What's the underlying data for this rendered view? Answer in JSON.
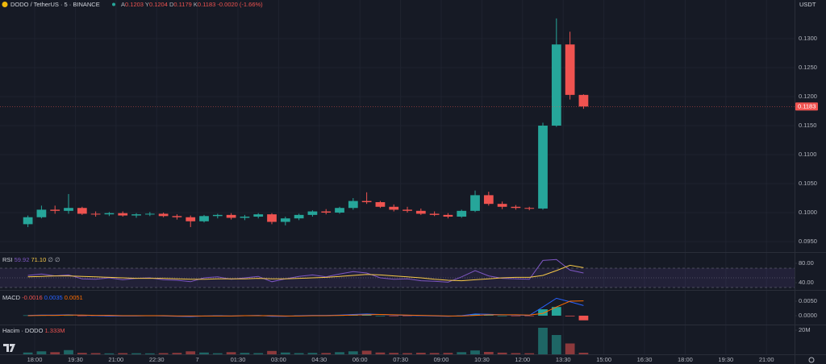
{
  "chart_data": {
    "type": "candlestick",
    "title": "DODO / TetherUS · 5 · BINANCE",
    "quote": "USDT",
    "ohlc_legend": [
      {
        "label": "A",
        "value": "0.1203"
      },
      {
        "label": "Y",
        "value": "0.1204"
      },
      {
        "label": "D",
        "value": "0.1179"
      },
      {
        "label": "K",
        "value": "0.1183"
      }
    ],
    "change": "-0.0020 (-1.66%)",
    "up_color": "#26a69a",
    "down_color": "#ef5350",
    "grid": true,
    "x": [
      1065,
      1095,
      1125,
      1155,
      1185,
      1215,
      1245,
      1275,
      1305,
      1335,
      1365,
      1395,
      1425,
      1455,
      1485,
      1515,
      1545,
      1575,
      1605,
      1635,
      1665,
      1695,
      1725,
      1755,
      1785,
      1815,
      1845,
      1875,
      1905,
      1935,
      1965,
      1995,
      2025,
      2055,
      2085,
      2115,
      2145,
      2175,
      2205,
      2235,
      2265,
      2295
    ],
    "open": [
      0.098,
      0.0992,
      0.1005,
      0.1003,
      0.1008,
      0.0998,
      0.0997,
      0.0999,
      0.0995,
      0.0997,
      0.0998,
      0.0994,
      0.0992,
      0.0985,
      0.0994,
      0.0996,
      0.0991,
      0.0993,
      0.0997,
      0.0984,
      0.099,
      0.0996,
      0.1002,
      0.1,
      0.1008,
      0.102,
      0.1018,
      0.101,
      0.1005,
      0.1003,
      0.0998,
      0.0996,
      0.0993,
      0.1003,
      0.103,
      0.1015,
      0.101,
      0.1008,
      0.1007,
      0.115,
      0.129,
      0.1203
    ],
    "high": [
      0.0995,
      0.1012,
      0.1012,
      0.1032,
      0.101,
      0.1002,
      0.1001,
      0.1002,
      0.0999,
      0.1001,
      0.1,
      0.0997,
      0.0995,
      0.0996,
      0.0998,
      0.0999,
      0.0996,
      0.0999,
      0.0999,
      0.0993,
      0.0998,
      0.1004,
      0.1006,
      0.101,
      0.1025,
      0.1035,
      0.102,
      0.1014,
      0.101,
      0.1007,
      0.1002,
      0.0999,
      0.1005,
      0.1038,
      0.1036,
      0.1019,
      0.1013,
      0.101,
      0.1155,
      0.1335,
      0.1312,
      0.1204
    ],
    "low": [
      0.0975,
      0.099,
      0.0998,
      0.0998,
      0.0996,
      0.0993,
      0.0994,
      0.0993,
      0.0991,
      0.0994,
      0.0992,
      0.0988,
      0.0975,
      0.0983,
      0.099,
      0.0988,
      0.0987,
      0.099,
      0.098,
      0.0978,
      0.0987,
      0.0993,
      0.0997,
      0.0998,
      0.1005,
      0.1015,
      0.1008,
      0.1002,
      0.1,
      0.0996,
      0.0994,
      0.099,
      0.0991,
      0.1001,
      0.1012,
      0.1006,
      0.1005,
      0.1004,
      0.1005,
      0.1148,
      0.1195,
      0.1179
    ],
    "close": [
      0.0992,
      0.1005,
      0.1003,
      0.1008,
      0.0998,
      0.0997,
      0.0999,
      0.0995,
      0.0997,
      0.0998,
      0.0994,
      0.0992,
      0.0985,
      0.0994,
      0.0996,
      0.0991,
      0.0993,
      0.0997,
      0.0984,
      0.099,
      0.0996,
      0.1002,
      0.1,
      0.1008,
      0.102,
      0.1018,
      0.101,
      0.1005,
      0.1003,
      0.0998,
      0.0996,
      0.0993,
      0.1003,
      0.103,
      0.1015,
      0.101,
      0.1008,
      0.1007,
      0.115,
      0.129,
      0.1203,
      0.1183
    ],
    "xlim": [
      1003.2,
      2762.1
    ],
    "xticks": [
      {
        "value": 1080,
        "label": "18:00"
      },
      {
        "value": 1170,
        "label": "19:30"
      },
      {
        "value": 1260,
        "label": "21:00"
      },
      {
        "value": 1350,
        "label": "22:30"
      },
      {
        "value": 1440,
        "label": "7"
      },
      {
        "value": 1530,
        "label": "01:30"
      },
      {
        "value": 1620,
        "label": "03:00"
      },
      {
        "value": 1710,
        "label": "04:30"
      },
      {
        "value": 1800,
        "label": "06:00"
      },
      {
        "value": 1890,
        "label": "07:30"
      },
      {
        "value": 1980,
        "label": "09:00"
      },
      {
        "value": 2070,
        "label": "10:30"
      },
      {
        "value": 2160,
        "label": "12:00"
      },
      {
        "value": 2250,
        "label": "13:30"
      },
      {
        "value": 2340,
        "label": "15:00"
      },
      {
        "value": 2430,
        "label": "16:30"
      },
      {
        "value": 2520,
        "label": "18:00"
      },
      {
        "value": 2610,
        "label": "19:30"
      },
      {
        "value": 2700,
        "label": "21:00"
      }
    ],
    "ylim": [
      0.09333,
      0.13667
    ],
    "yticks": [
      {
        "value": 0.095,
        "label": "0.0950"
      },
      {
        "value": 0.1,
        "label": "0.1000"
      },
      {
        "value": 0.105,
        "label": "0.1050"
      },
      {
        "value": 0.11,
        "label": "0.1100"
      },
      {
        "value": 0.115,
        "label": "0.1150"
      },
      {
        "value": 0.12,
        "label": "0.1200"
      },
      {
        "value": 0.125,
        "label": "0.1250"
      },
      {
        "value": 0.13,
        "label": "0.1300"
      }
    ],
    "rsi": {
      "title": "RSI",
      "legend": [
        "59.92",
        "71.10"
      ],
      "extra": "∅ ∅",
      "ylim": [
        28.33,
        100
      ],
      "yticks": [
        {
          "value": 40,
          "label": "40.00"
        },
        {
          "value": 80,
          "label": "80.00"
        }
      ],
      "levels": [
        70,
        50,
        30
      ],
      "series": [
        {
          "name": "RSI",
          "color": "#7e57c2",
          "values": [
            55,
            58,
            54,
            56,
            48,
            47,
            50,
            46,
            49,
            50,
            46,
            45,
            42,
            50,
            52,
            47,
            50,
            53,
            42,
            48,
            53,
            56,
            52,
            58,
            63,
            60,
            50,
            47,
            48,
            44,
            43,
            41,
            52,
            65,
            54,
            49,
            48,
            47,
            86,
            88,
            66,
            59.92
          ]
        },
        {
          "name": "MA",
          "color": "#f7c948",
          "values": [
            52,
            53,
            54,
            54,
            53,
            52,
            51,
            50,
            49,
            49,
            49,
            48,
            47,
            47,
            48,
            48,
            48,
            49,
            48,
            48,
            49,
            50,
            51,
            53,
            55,
            57,
            56,
            54,
            52,
            50,
            47,
            45,
            44,
            46,
            48,
            50,
            51,
            51,
            55,
            65,
            76,
            71.1
          ]
        }
      ]
    },
    "macd": {
      "title": "MACD",
      "legend": [
        "-0.0016",
        "0.0035",
        "0.0051"
      ],
      "ylim": [
        -0.00278,
        0.00833
      ],
      "yticks": [
        {
          "value": 0,
          "label": "0.0000"
        },
        {
          "value": 0.005,
          "label": "0.0050"
        }
      ],
      "histogram": [
        0.0001,
        0.0001,
        0.0001,
        0.0001,
        -0.0001,
        -0.0001,
        -0.0002,
        -0.0001,
        -0.0001,
        0,
        -0.0001,
        -0.0001,
        -0.0002,
        0,
        0.0001,
        0,
        0,
        0.0001,
        -0.0002,
        -0.0001,
        0.0001,
        0.0001,
        0.0001,
        0.0001,
        0.0002,
        0.0003,
        0,
        -0.0001,
        -0.0001,
        -0.0001,
        -0.0001,
        -0.0001,
        0.0001,
        0.0005,
        0.0002,
        0,
        -0.0001,
        -0.0001,
        0.0022,
        0.003,
        -0.0002,
        -0.0016
      ],
      "series": [
        {
          "name": "MACD",
          "color": "#2962ff",
          "values": [
            0.0001,
            0.0002,
            0.0002,
            0.0003,
            0.0001,
            0,
            -0.0001,
            -0.0001,
            -0.0001,
            0,
            -0.0001,
            -0.0002,
            -0.0003,
            -0.0001,
            0,
            -0.0001,
            0,
            0.0001,
            -0.0002,
            -0.0002,
            0,
            0.0001,
            0.0001,
            0.0002,
            0.0004,
            0.0006,
            0.0004,
            0.0002,
            0.0001,
            0,
            -0.0001,
            -0.0002,
            0,
            0.0006,
            0.0005,
            0.0003,
            0.0002,
            0.0001,
            0.003,
            0.006,
            0.0048,
            0.0035
          ]
        },
        {
          "name": "Signal",
          "color": "#ff6d00",
          "values": [
            0,
            0.0001,
            0.0001,
            0.0002,
            0.0002,
            0.0001,
            0.0001,
            0,
            0,
            0,
            0,
            -0.0001,
            -0.0001,
            -0.0001,
            -0.0001,
            -0.0001,
            0,
            0,
            0,
            -0.0001,
            -0.0001,
            0,
            0,
            0.0001,
            0.0002,
            0.0003,
            0.0004,
            0.0003,
            0.0002,
            0.0001,
            0,
            -0.0001,
            -0.0001,
            0.0001,
            0.0003,
            0.0003,
            0.0003,
            0.0002,
            0.0008,
            0.003,
            0.005,
            0.0051
          ]
        }
      ]
    },
    "volume": {
      "title": "Hacim · DODO",
      "legend": "1.333M",
      "ylim": [
        0,
        24000000
      ],
      "yticks": [
        {
          "value": 20000000,
          "label": "20M"
        }
      ],
      "values": [
        1500000,
        2500000,
        1800000,
        3500000,
        1200000,
        1000000,
        800000,
        1000000,
        900000,
        800000,
        1000000,
        1200000,
        2500000,
        1500000,
        900000,
        1800000,
        1200000,
        1000000,
        2800000,
        1500000,
        1000000,
        1200000,
        1100000,
        1800000,
        2500000,
        3000000,
        1500000,
        1200000,
        1000000,
        1300000,
        1100000,
        1200000,
        1800000,
        3200000,
        2000000,
        1400000,
        1000000,
        900000,
        22000000,
        16000000,
        9000000,
        1333000
      ]
    }
  }
}
